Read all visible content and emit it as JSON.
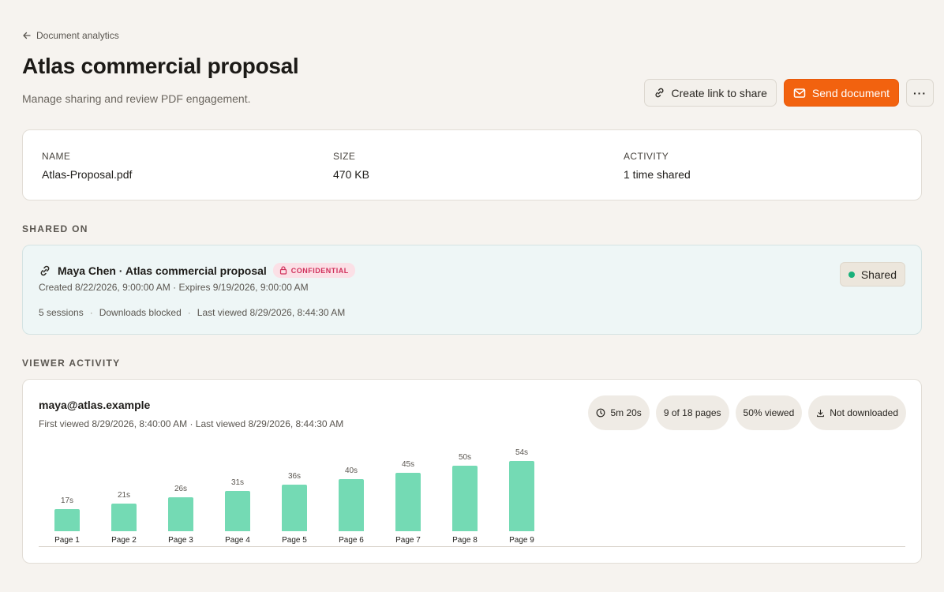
{
  "breadcrumb": {
    "label": "Document analytics"
  },
  "header": {
    "title": "Atlas commercial proposal",
    "subtitle": "Manage sharing and review PDF engagement."
  },
  "actions": {
    "create_link_label": "Create link to share",
    "send_label": "Send document",
    "more_label": "···"
  },
  "document": {
    "name_label": "NAME",
    "name_value": "Atlas-Proposal.pdf",
    "size_label": "SIZE",
    "size_value": "470 KB",
    "activity_label": "ACTIVITY",
    "activity_value": "1 time shared"
  },
  "shared_on": {
    "section_label": "SHARED ON",
    "title": "Maya Chen · Atlas commercial proposal",
    "badge": "CONFIDENTIAL",
    "dates": "Created 8/22/2026, 9:00:00 AM · Expires 9/19/2026, 9:00:00 AM",
    "sessions": "5 sessions",
    "downloads": "Downloads blocked",
    "last_viewed": "Last viewed 8/29/2026, 8:44:30 AM",
    "status": "Shared"
  },
  "viewer_activity": {
    "section_label": "VIEWER ACTIVITY",
    "email": "maya@atlas.example",
    "times": "First viewed 8/29/2026, 8:40:00 AM · Last viewed 8/29/2026, 8:44:30 AM",
    "pills": {
      "duration": "5m 20s",
      "pages": "9 of 18 pages",
      "percent": "50% viewed",
      "download": "Not downloaded"
    }
  },
  "chart_data": {
    "type": "bar",
    "categories": [
      "Page 1",
      "Page 2",
      "Page 3",
      "Page 4",
      "Page 5",
      "Page 6",
      "Page 7",
      "Page 8",
      "Page 9"
    ],
    "values": [
      17,
      21,
      26,
      31,
      36,
      40,
      45,
      50,
      54
    ],
    "value_labels": [
      "17s",
      "21s",
      "26s",
      "31s",
      "36s",
      "40s",
      "45s",
      "50s",
      "54s"
    ],
    "unit": "s",
    "color": "#74dab4"
  },
  "colors": {
    "accent": "#f2620f",
    "confidential": "#d0305b",
    "shared_dot": "#18b07a"
  }
}
